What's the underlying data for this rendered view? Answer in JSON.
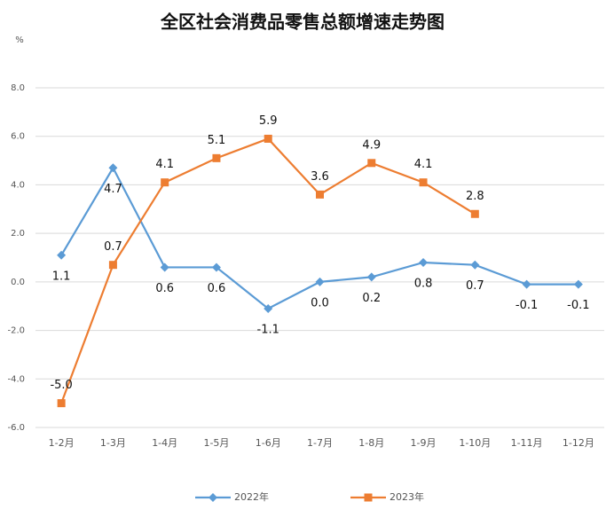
{
  "chart_data": {
    "type": "line",
    "title": "全区社会消费品零售总额增速走势图",
    "y_label": "%",
    "categories": [
      "1-2月",
      "1-3月",
      "1-4月",
      "1-5月",
      "1-6月",
      "1-7月",
      "1-8月",
      "1-9月",
      "1-10月",
      "1-11月",
      "1-12月"
    ],
    "series": [
      {
        "name": "2022年",
        "color": "#5b9bd5",
        "marker": "diamond",
        "values": [
          1.1,
          4.7,
          0.6,
          0.6,
          -1.1,
          0.0,
          0.2,
          0.8,
          0.7,
          -0.1,
          -0.1
        ],
        "value_labels": [
          "1.1",
          "4.7",
          "0.6",
          "0.6",
          "-1.1",
          "0.0",
          "0.2",
          "0.8",
          "0.7",
          "-0.1",
          "-0.1"
        ]
      },
      {
        "name": "2023年",
        "color": "#ed7d31",
        "marker": "square",
        "values": [
          -5.0,
          0.7,
          4.1,
          5.1,
          5.9,
          3.6,
          4.9,
          4.1,
          2.8,
          null,
          null
        ],
        "value_labels": [
          "-5.0",
          "0.7",
          "4.1",
          "5.1",
          "5.9",
          "3.6",
          "4.9",
          "4.1",
          "2.8",
          null,
          null
        ]
      }
    ],
    "ylim": [
      -6,
      8
    ],
    "yticks": [
      {
        "value": -6,
        "label": "-6.0"
      },
      {
        "value": -4,
        "label": "-4.0"
      },
      {
        "value": -2,
        "label": "-2.0"
      },
      {
        "value": 0,
        "label": "0.0"
      },
      {
        "value": 2,
        "label": "2.0"
      },
      {
        "value": 4,
        "label": "4.0"
      },
      {
        "value": 6,
        "label": "6.0"
      },
      {
        "value": 8,
        "label": "8.0"
      }
    ],
    "grid": true,
    "legend": "bottom"
  }
}
